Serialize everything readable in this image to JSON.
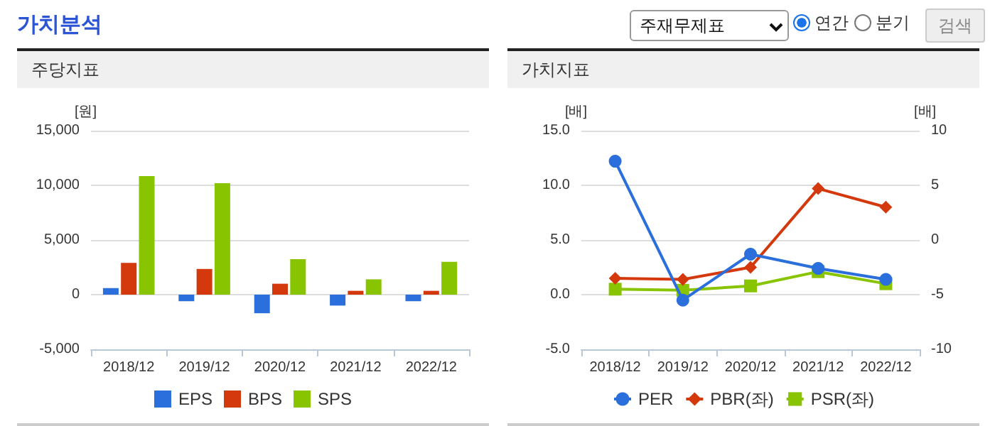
{
  "chart_data": [
    {
      "type": "bar",
      "title": "주당지표",
      "annotations": [
        "가치분석",
        "주재무제표",
        "연간",
        "분기",
        "검색"
      ],
      "ylabel": "[원]",
      "categories": [
        "2018/12",
        "2019/12",
        "2020/12",
        "2021/12",
        "2022/12"
      ],
      "series": [
        {
          "name": "EPS",
          "color": "#2a6fdb",
          "values": [
            600,
            -600,
            -1700,
            -1000,
            -600
          ]
        },
        {
          "name": "BPS",
          "color": "#d4380d",
          "values": [
            2900,
            2350,
            1000,
            350,
            350
          ]
        },
        {
          "name": "SPS",
          "color": "#88c400",
          "values": [
            10850,
            10200,
            3250,
            1400,
            3000
          ]
        }
      ],
      "ylim": [
        -5000,
        15000
      ],
      "yticks": [
        {
          "value": -5000,
          "label": "-5,000"
        },
        0,
        {
          "value": 5000,
          "label": "5,000"
        },
        {
          "value": 10000,
          "label": "10,000"
        },
        {
          "value": 15000,
          "label": "15,000"
        }
      ],
      "grid": "y",
      "legend": "bottom"
    },
    {
      "type": "line",
      "title": "가치지표",
      "ylabel": "[배]",
      "y2label": "[배]",
      "categories": [
        "2018/12",
        "2019/12",
        "2020/12",
        "2021/12",
        "2022/12"
      ],
      "series": [
        {
          "name": "PER",
          "color": "#2a6fdb",
          "axis": "y2",
          "marker": "circle",
          "values": [
            7.2,
            -5.5,
            -1.3,
            -2.6,
            -3.6
          ]
        },
        {
          "name": "PBR(좌)",
          "color": "#d4380d",
          "marker": "diamond",
          "values": [
            1.5,
            1.4,
            2.5,
            9.7,
            8.0
          ]
        },
        {
          "name": "PSR(좌)",
          "color": "#88c400",
          "marker": "square",
          "values": [
            0.5,
            0.4,
            0.8,
            2.1,
            1.0
          ]
        }
      ],
      "ylim": [
        -5,
        15
      ],
      "yticks": [
        {
          "value": -5,
          "label": "-5.0"
        },
        {
          "value": 0,
          "label": "0.0"
        },
        {
          "value": 5,
          "label": "5.0"
        },
        {
          "value": 10,
          "label": "10.0"
        },
        {
          "value": 15,
          "label": "15.0"
        }
      ],
      "y2lim": [
        -10,
        10
      ],
      "y2ticks": [
        -10,
        -5,
        0,
        5,
        10
      ],
      "grid": "y",
      "legend": "bottom",
      "line_style": "solid"
    }
  ]
}
